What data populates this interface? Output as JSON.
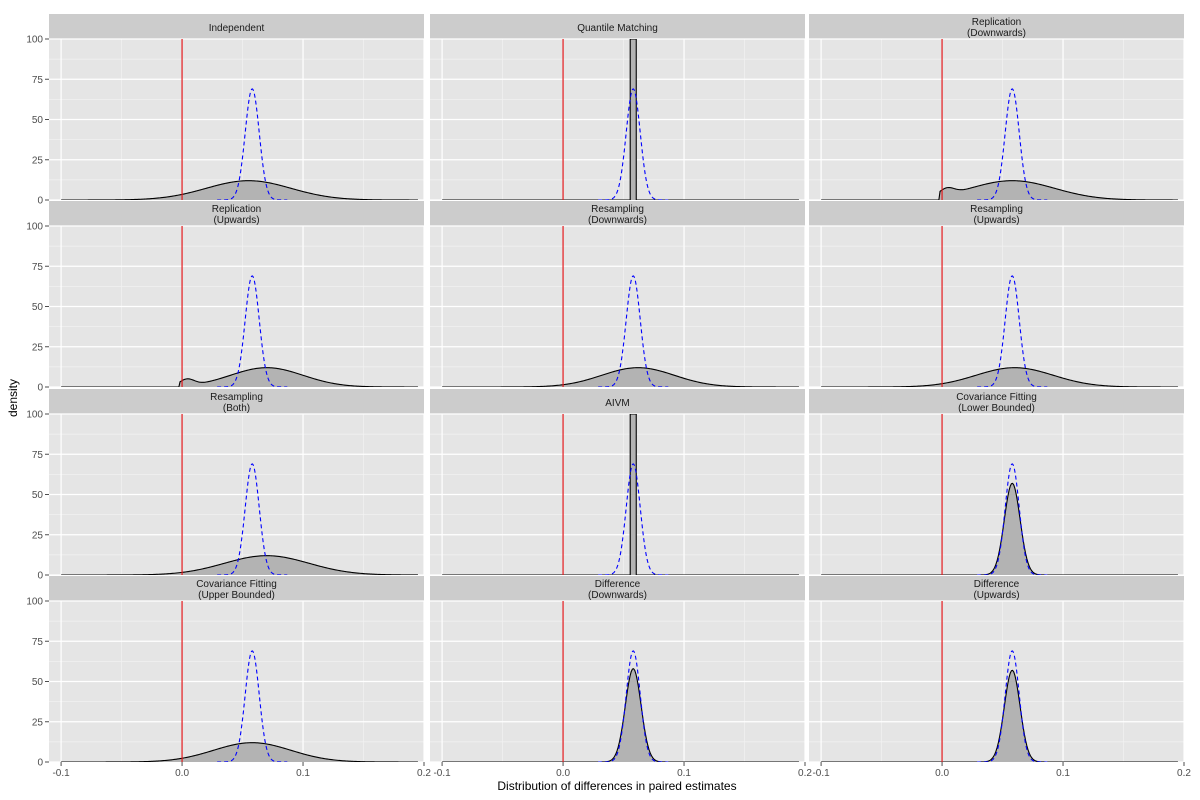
{
  "chart_data": {
    "type": "area",
    "layout": "facet-grid-4x3",
    "xlabel": "Distribution of differences in paired estimates",
    "ylabel": "density",
    "xlim": [
      -0.11,
      0.2
    ],
    "ylim": [
      0,
      100
    ],
    "xticks": [
      -0.1,
      0.0,
      0.1,
      0.2
    ],
    "xtick_labels": [
      "-0.1",
      "0.0",
      "0.1",
      "0.2"
    ],
    "yticks": [
      0,
      25,
      50,
      75,
      100
    ],
    "ytick_labels": [
      "0",
      "25",
      "50",
      "75",
      "100"
    ],
    "reference_line": {
      "x": 0.0,
      "color": "#e31a1c"
    },
    "reference_density": {
      "mean": 0.058,
      "sd": 0.0058,
      "peak": 69,
      "color": "#0000ff",
      "dash": "dashed"
    },
    "fill_color": "#b3b3b3",
    "grid": true,
    "panels": [
      {
        "strip": [
          "Independent"
        ],
        "kind": "wide",
        "mean": 0.055,
        "sd": 0.035,
        "peak": 12,
        "bump": 0
      },
      {
        "strip": [
          "Quantile Matching"
        ],
        "kind": "spike",
        "mean": 0.058,
        "sd": 0.0006,
        "peak": 100,
        "bump": 0
      },
      {
        "strip": [
          "Replication",
          "(Downwards)"
        ],
        "kind": "wide",
        "mean": 0.058,
        "sd": 0.035,
        "peak": 12,
        "bump": 4
      },
      {
        "strip": [
          "Replication",
          "(Upwards)"
        ],
        "kind": "wide",
        "mean": 0.07,
        "sd": 0.03,
        "peak": 12,
        "bump": 4
      },
      {
        "strip": [
          "Resampling",
          "(Downwards)"
        ],
        "kind": "wide",
        "mean": 0.062,
        "sd": 0.03,
        "peak": 12,
        "bump": 0
      },
      {
        "strip": [
          "Resampling",
          "(Upwards)"
        ],
        "kind": "wide",
        "mean": 0.06,
        "sd": 0.032,
        "peak": 12,
        "bump": 0
      },
      {
        "strip": [
          "Resampling",
          "(Both)"
        ],
        "kind": "wide",
        "mean": 0.07,
        "sd": 0.035,
        "peak": 12,
        "bump": 0
      },
      {
        "strip": [
          "AIVM"
        ],
        "kind": "spike",
        "mean": 0.058,
        "sd": 0.0006,
        "peak": 100,
        "bump": 0
      },
      {
        "strip": [
          "Covariance Fitting",
          "(Lower Bounded)"
        ],
        "kind": "narrow",
        "mean": 0.058,
        "sd": 0.0065,
        "peak": 57,
        "bump": 0
      },
      {
        "strip": [
          "Covariance Fitting",
          "(Upper Bounded)"
        ],
        "kind": "wide",
        "mean": 0.058,
        "sd": 0.032,
        "peak": 12,
        "bump": 0
      },
      {
        "strip": [
          "Difference",
          "(Downwards)"
        ],
        "kind": "narrow",
        "mean": 0.058,
        "sd": 0.0065,
        "peak": 58,
        "bump": 0
      },
      {
        "strip": [
          "Difference",
          "(Upwards)"
        ],
        "kind": "narrow",
        "mean": 0.058,
        "sd": 0.0065,
        "peak": 57,
        "bump": 0
      }
    ]
  }
}
